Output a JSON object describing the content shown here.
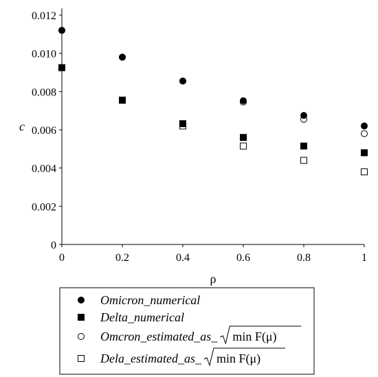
{
  "chart_data": {
    "type": "scatter",
    "xlabel": "ρ",
    "ylabel": "c",
    "xlim": [
      0,
      1
    ],
    "ylim": [
      0,
      0.012
    ],
    "x_ticks": [
      "0",
      "0.2",
      "0.4",
      "0.6",
      "0.8",
      "1"
    ],
    "y_ticks": [
      "0",
      "0.002",
      "0.004",
      "0.006",
      "0.008",
      "0.010",
      "0.012"
    ],
    "grid": false,
    "legend_position": "bottom",
    "x": [
      0,
      0.2,
      0.4,
      0.6,
      0.8,
      1
    ],
    "series": [
      {
        "name": "Omicron_numerical",
        "marker": "filled-circle",
        "values": [
          0.0112,
          0.0098,
          0.00855,
          0.00752,
          0.00675,
          0.0062
        ]
      },
      {
        "name": "Delta_numerical",
        "marker": "filled-square",
        "values": [
          0.00925,
          0.00755,
          0.00632,
          0.0056,
          0.00515,
          0.0048
        ]
      },
      {
        "name": "Omcron_estimated_as_",
        "marker": "open-circle",
        "values": [
          0.0112,
          0.0098,
          0.00855,
          0.00745,
          0.00655,
          0.0058
        ]
      },
      {
        "name": "Dela_estimated_as_",
        "marker": "open-square",
        "values": [
          0.00925,
          0.00755,
          0.0062,
          0.00515,
          0.0044,
          0.0038
        ]
      }
    ],
    "legend_formula": "min F(μ)"
  }
}
